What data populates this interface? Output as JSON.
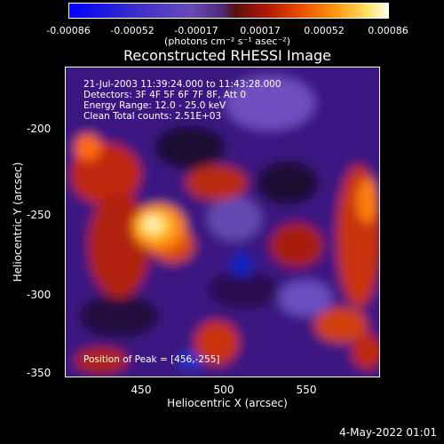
{
  "colorbar": {
    "ticks": [
      "-0.00086",
      "-0.00052",
      "-0.00017",
      "0.00017",
      "0.00052",
      "0.00086"
    ],
    "units": "(photons cm⁻² s⁻¹ asec⁻²)"
  },
  "title": "Reconstructed RHESSI Image",
  "info": {
    "time": "21-Jul-2003 11:39:24.000 to 11:43:28.000",
    "detectors": "Detectors: 3F 4F 5F 6F 7F 8F, Att 0",
    "energy": "Energy Range: 12.0 - 25.0 keV",
    "clean": "Clean     Total counts: 2.51E+03",
    "peak": "Position of Peak = [456,-255]"
  },
  "axes": {
    "xlabel": "Heliocentric X (arcsec)",
    "ylabel": "Heliocentric Y (arcsec)",
    "xticks": [
      "450",
      "500",
      "550"
    ],
    "yticks": [
      "-200",
      "-250",
      "-300",
      "-350"
    ]
  },
  "footer": {
    "date": "4-May-2022 01:01"
  },
  "colors": {
    "background": "#000000",
    "foreground": "#ffffff"
  }
}
